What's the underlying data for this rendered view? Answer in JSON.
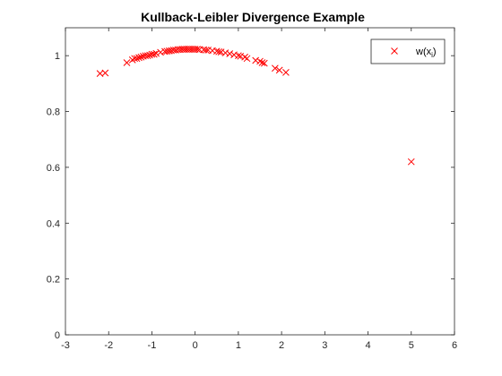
{
  "chart_data": {
    "type": "scatter",
    "title": "Kullback-Leibler Divergence Example",
    "xlabel": "",
    "ylabel": "",
    "xlim": [
      -3,
      6
    ],
    "ylim": [
      0,
      1.1
    ],
    "xticks": [
      -3,
      -2,
      -1,
      0,
      1,
      2,
      3,
      4,
      5,
      6
    ],
    "yticks": [
      0,
      0.2,
      0.4,
      0.6,
      0.8,
      1
    ],
    "grid": false,
    "legend_position": "top-right",
    "marker": "x",
    "marker_color": "#ff0000",
    "series": [
      {
        "name": "w(x_i)",
        "legend_base": "w(x",
        "legend_sub": "i",
        "legend_close": ")",
        "x": [
          -2.2,
          -2.08,
          -1.58,
          -1.45,
          -1.4,
          -1.35,
          -1.3,
          -1.25,
          -1.2,
          -1.15,
          -1.1,
          -1.05,
          -1.0,
          -0.95,
          -0.9,
          -0.8,
          -0.7,
          -0.65,
          -0.6,
          -0.55,
          -0.5,
          -0.45,
          -0.4,
          -0.35,
          -0.3,
          -0.25,
          -0.2,
          -0.15,
          -0.1,
          -0.05,
          0.0,
          0.05,
          0.1,
          0.2,
          0.25,
          0.3,
          0.4,
          0.5,
          0.55,
          0.6,
          0.7,
          0.8,
          0.9,
          1.0,
          1.05,
          1.15,
          1.2,
          1.4,
          1.5,
          1.55,
          1.6,
          1.85,
          1.95,
          2.1,
          5.0
        ],
        "y": [
          0.936,
          0.938,
          0.975,
          0.985,
          0.99,
          0.99,
          0.993,
          0.995,
          0.998,
          1.0,
          1.0,
          1.002,
          1.005,
          1.005,
          1.008,
          1.012,
          1.015,
          1.016,
          1.017,
          1.018,
          1.02,
          1.02,
          1.022,
          1.022,
          1.023,
          1.023,
          1.023,
          1.023,
          1.023,
          1.023,
          1.023,
          1.023,
          1.022,
          1.021,
          1.02,
          1.02,
          1.018,
          1.016,
          1.014,
          1.013,
          1.01,
          1.007,
          1.003,
          1.0,
          0.998,
          0.995,
          0.99,
          0.983,
          0.98,
          0.975,
          0.973,
          0.955,
          0.948,
          0.94,
          0.62
        ]
      }
    ]
  }
}
